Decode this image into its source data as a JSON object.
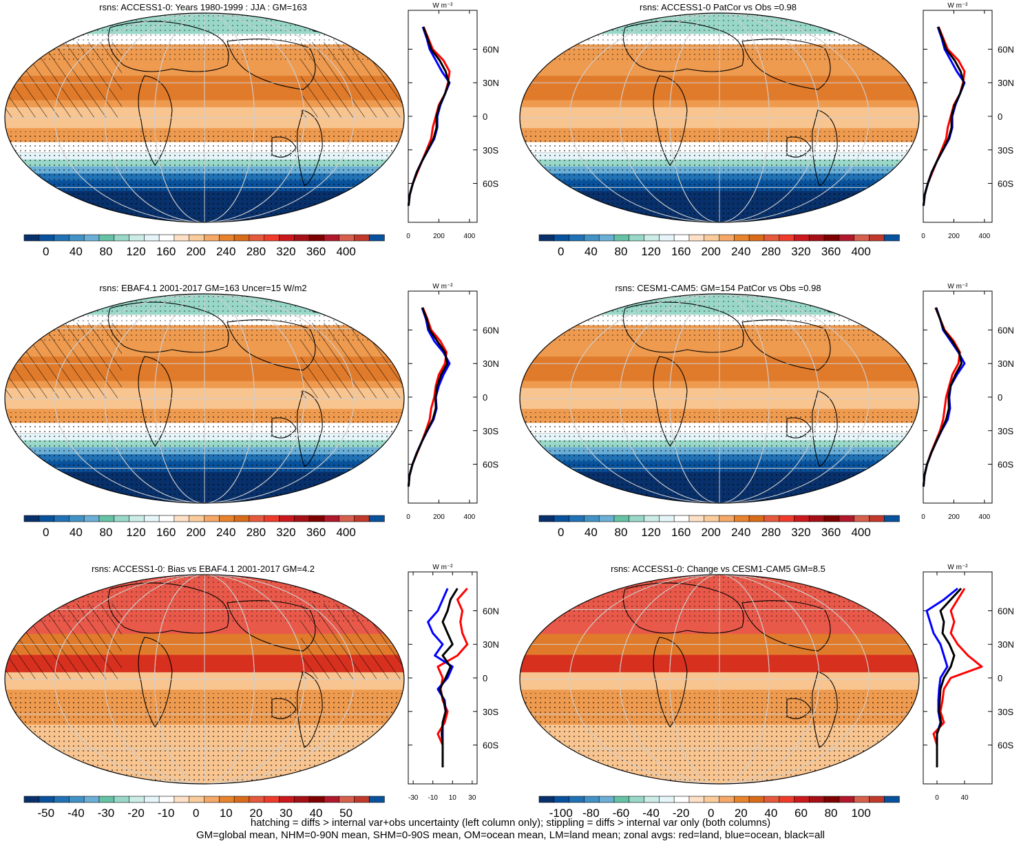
{
  "palette": {
    "full": [
      "#08306b",
      "#08519c",
      "#2171b5",
      "#4292c6",
      "#6baed6",
      "#66c2a4",
      "#99d8c9",
      "#ccece6",
      "#e5f5f9",
      "#ffffff",
      "#fde0c5",
      "#facc9c",
      "#f5a867",
      "#e8832d",
      "#d96c1a",
      "#e55a3c",
      "#ef3b2c",
      "#cb181d",
      "#a50f15",
      "#7f0000",
      "#b2182b",
      "#d6604d",
      "#c0392b",
      "#08519c"
    ],
    "map_abs": [
      "#08306b",
      "#08519c",
      "#2171b5",
      "#6baed6",
      "#99d8c9",
      "#e5f5f9",
      "#ffffff",
      "#fde9d3",
      "#f8c48f",
      "#ee9a4f",
      "#e07b2b",
      "#e8594a",
      "#e03a2e"
    ],
    "map_bias": [
      "#08519c",
      "#6baed6",
      "#ccece6",
      "#ffffff",
      "#fde9d3",
      "#f8c48f",
      "#ee9a4f",
      "#e07b2b",
      "#e8594a",
      "#d7301f",
      "#b2182b"
    ]
  },
  "line_colors": {
    "land": "#ff0000",
    "ocean": "#0000ff",
    "all": "#000000"
  },
  "panels": [
    {
      "id": "p1",
      "title": "rsns: ACCESS1-0: Years 1980-1999 : JJA : GM=163",
      "kind": "abs",
      "hatch": true,
      "cbar_labels": [
        "0",
        "40",
        "80",
        "120",
        "160",
        "200",
        "240",
        "280",
        "320",
        "360",
        "400"
      ],
      "zonal_xlabels": [
        "0",
        "200",
        "400"
      ],
      "zonal_unit": "W m⁻²",
      "lat_labels": [
        "60N",
        "30N",
        "0",
        "30S",
        "60S"
      ]
    },
    {
      "id": "p2",
      "title": "rsns: ACCESS1-0 PatCor vs Obs =0.98",
      "kind": "abs",
      "hatch": false,
      "cbar_labels": [
        "0",
        "40",
        "80",
        "120",
        "160",
        "200",
        "240",
        "280",
        "320",
        "360",
        "400"
      ],
      "zonal_xlabels": [
        "0",
        "200",
        "400"
      ],
      "zonal_unit": "W m⁻²",
      "lat_labels": [
        "60N",
        "30N",
        "0",
        "30S",
        "60S"
      ]
    },
    {
      "id": "p3",
      "title": "rsns: EBAF4.1 2001-2017 GM=163 Uncer=15 W/m2",
      "kind": "abs",
      "hatch": true,
      "cbar_labels": [
        "0",
        "40",
        "80",
        "120",
        "160",
        "200",
        "240",
        "280",
        "320",
        "360",
        "400"
      ],
      "zonal_xlabels": [
        "0",
        "200",
        "400"
      ],
      "zonal_unit": "W m⁻²",
      "lat_labels": [
        "60N",
        "30N",
        "0",
        "30S",
        "60S"
      ]
    },
    {
      "id": "p4",
      "title": "rsns: CESM1-CAM5: GM=154 PatCor vs Obs =0.98",
      "kind": "abs",
      "hatch": false,
      "cbar_labels": [
        "0",
        "40",
        "80",
        "120",
        "160",
        "200",
        "240",
        "280",
        "320",
        "360",
        "400"
      ],
      "zonal_xlabels": [
        "0",
        "200",
        "400"
      ],
      "zonal_unit": "W m⁻²",
      "lat_labels": [
        "60N",
        "30N",
        "0",
        "30S",
        "60S"
      ]
    },
    {
      "id": "p5",
      "title": "rsns: ACCESS1-0: Bias vs EBAF4.1 2001-2017 GM=4.2",
      "kind": "bias",
      "hatch": true,
      "cbar_labels": [
        "-50",
        "-40",
        "-30",
        "-20",
        "-10",
        "0",
        "10",
        "20",
        "30",
        "40",
        "50"
      ],
      "zonal_xlabels": [
        "-30",
        "-10",
        "10",
        "30"
      ],
      "zonal_unit": "W m⁻²",
      "lat_labels": [
        "60N",
        "30N",
        "0",
        "30S",
        "60S"
      ]
    },
    {
      "id": "p6",
      "title": "rsns: ACCESS1-0: Change vs CESM1-CAM5 GM=8.5",
      "kind": "bias",
      "hatch": false,
      "cbar_labels": [
        "-100",
        "-80",
        "-60",
        "-40",
        "-20",
        "0",
        "20",
        "40",
        "60",
        "80",
        "100"
      ],
      "zonal_xlabels": [
        "0",
        "40"
      ],
      "zonal_unit": "W m⁻²",
      "lat_labels": [
        "60N",
        "30N",
        "0",
        "30S",
        "60S"
      ]
    }
  ],
  "chart_data": [
    {
      "type": "heatmap",
      "title": "rsns: ACCESS1-0: Years 1980-1999 : JJA : GM=163",
      "colorbar_ticks": [
        0,
        40,
        80,
        120,
        160,
        200,
        240,
        280,
        320,
        360,
        400
      ],
      "zonal_mean": {
        "lat": [
          80,
          70,
          60,
          50,
          40,
          30,
          20,
          10,
          0,
          -10,
          -20,
          -30,
          -40,
          -50,
          -60,
          -70,
          -80
        ],
        "land": [
          100,
          130,
          160,
          230,
          270,
          260,
          240,
          200,
          180,
          160,
          150,
          120,
          90,
          60,
          30,
          10,
          2
        ],
        "ocean": [
          95,
          120,
          140,
          180,
          220,
          270,
          240,
          210,
          190,
          190,
          170,
          130,
          90,
          55,
          30,
          10,
          2
        ],
        "all": [
          98,
          125,
          150,
          205,
          245,
          265,
          240,
          205,
          185,
          185,
          165,
          128,
          90,
          56,
          30,
          10,
          2
        ]
      }
    },
    {
      "type": "heatmap",
      "title": "rsns: ACCESS1-0 PatCor vs Obs =0.98",
      "colorbar_ticks": [
        0,
        40,
        80,
        120,
        160,
        200,
        240,
        280,
        320,
        360,
        400
      ],
      "zonal_mean": {
        "lat": [
          80,
          70,
          60,
          50,
          40,
          30,
          20,
          10,
          0,
          -10,
          -20,
          -30,
          -40,
          -50,
          -60,
          -70,
          -80
        ],
        "land": [
          100,
          130,
          160,
          230,
          270,
          260,
          240,
          200,
          180,
          160,
          150,
          120,
          90,
          60,
          30,
          10,
          2
        ],
        "ocean": [
          95,
          120,
          140,
          180,
          220,
          270,
          240,
          210,
          190,
          190,
          170,
          130,
          90,
          55,
          30,
          10,
          2
        ],
        "all": [
          98,
          125,
          150,
          205,
          245,
          265,
          240,
          205,
          185,
          185,
          165,
          128,
          90,
          56,
          30,
          10,
          2
        ]
      }
    },
    {
      "type": "heatmap",
      "title": "rsns: EBAF4.1 2001-2017 GM=163 Uncer=15 W/m2",
      "colorbar_ticks": [
        0,
        40,
        80,
        120,
        160,
        200,
        240,
        280,
        320,
        360,
        400
      ],
      "zonal_mean": {
        "lat": [
          80,
          70,
          60,
          50,
          40,
          30,
          20,
          10,
          0,
          -10,
          -20,
          -30,
          -40,
          -50,
          -60,
          -70,
          -80
        ],
        "land": [
          95,
          125,
          150,
          210,
          250,
          240,
          200,
          180,
          170,
          150,
          140,
          115,
          88,
          58,
          28,
          8,
          2
        ],
        "ocean": [
          90,
          115,
          130,
          170,
          230,
          270,
          230,
          200,
          180,
          185,
          165,
          125,
          88,
          55,
          28,
          8,
          2
        ],
        "all": [
          92,
          120,
          140,
          190,
          240,
          255,
          215,
          190,
          178,
          180,
          160,
          122,
          88,
          56,
          28,
          8,
          2
        ]
      }
    },
    {
      "type": "heatmap",
      "title": "rsns: CESM1-CAM5: GM=154 PatCor vs Obs =0.98",
      "colorbar_ticks": [
        0,
        40,
        80,
        120,
        160,
        200,
        240,
        280,
        320,
        360,
        400
      ],
      "zonal_mean": {
        "lat": [
          80,
          70,
          60,
          50,
          40,
          30,
          20,
          10,
          0,
          -10,
          -20,
          -30,
          -40,
          -50,
          -60,
          -70,
          -80
        ],
        "land": [
          80,
          110,
          140,
          200,
          240,
          230,
          190,
          170,
          150,
          140,
          130,
          110,
          80,
          50,
          25,
          8,
          2
        ],
        "ocean": [
          85,
          110,
          130,
          180,
          230,
          270,
          220,
          180,
          170,
          175,
          160,
          120,
          85,
          52,
          25,
          8,
          2
        ],
        "all": [
          82,
          110,
          135,
          190,
          235,
          250,
          210,
          178,
          165,
          168,
          150,
          118,
          84,
          52,
          25,
          8,
          2
        ]
      }
    },
    {
      "type": "heatmap",
      "title": "rsns: ACCESS1-0: Bias vs EBAF4.1 2001-2017 GM=4.2",
      "colorbar_ticks": [
        -50,
        -40,
        -30,
        -20,
        -10,
        0,
        10,
        20,
        30,
        40,
        50
      ],
      "zonal_mean": {
        "lat": [
          80,
          70,
          60,
          50,
          40,
          30,
          20,
          10,
          0,
          -10,
          -20,
          -30,
          -40,
          -50,
          -60,
          -70,
          -80
        ],
        "land": [
          25,
          15,
          20,
          18,
          20,
          25,
          15,
          -5,
          0,
          -2,
          0,
          5,
          2,
          -5,
          0,
          0,
          0
        ],
        "ocean": [
          5,
          0,
          -5,
          -15,
          -10,
          0,
          -8,
          10,
          5,
          -5,
          2,
          3,
          0,
          0,
          0,
          0,
          0
        ],
        "all": [
          15,
          8,
          5,
          0,
          5,
          10,
          0,
          8,
          3,
          -3,
          1,
          3,
          0,
          -1,
          0,
          0,
          0
        ]
      }
    },
    {
      "type": "heatmap",
      "title": "rsns: ACCESS1-0: Change vs CESM1-CAM5 GM=8.5",
      "colorbar_ticks": [
        -100,
        -80,
        -60,
        -40,
        -20,
        0,
        20,
        40,
        60,
        80,
        100
      ],
      "zonal_mean": {
        "lat": [
          80,
          70,
          60,
          50,
          40,
          30,
          20,
          10,
          0,
          -10,
          -20,
          -30,
          -40,
          -50,
          -60,
          -70,
          -80
        ],
        "land": [
          40,
          30,
          20,
          25,
          20,
          30,
          45,
          65,
          20,
          10,
          8,
          5,
          10,
          -5,
          0,
          0,
          0
        ],
        "ocean": [
          30,
          10,
          -15,
          -10,
          -5,
          5,
          10,
          15,
          5,
          3,
          2,
          2,
          5,
          0,
          0,
          0,
          0
        ],
        "all": [
          35,
          20,
          5,
          10,
          8,
          18,
          25,
          20,
          10,
          5,
          4,
          3,
          6,
          0,
          0,
          0,
          0
        ]
      }
    }
  ],
  "footer": {
    "line1": "hatching = diffs > internal var+obs uncertainty (left column only); stippling = diffs > internal var only (both columns)",
    "line2": "GM=global mean, NHM=0-90N mean, SHM=0-90S mean, OM=ocean mean, LM=land mean; zonal avgs: red=land, blue=ocean, black=all"
  }
}
